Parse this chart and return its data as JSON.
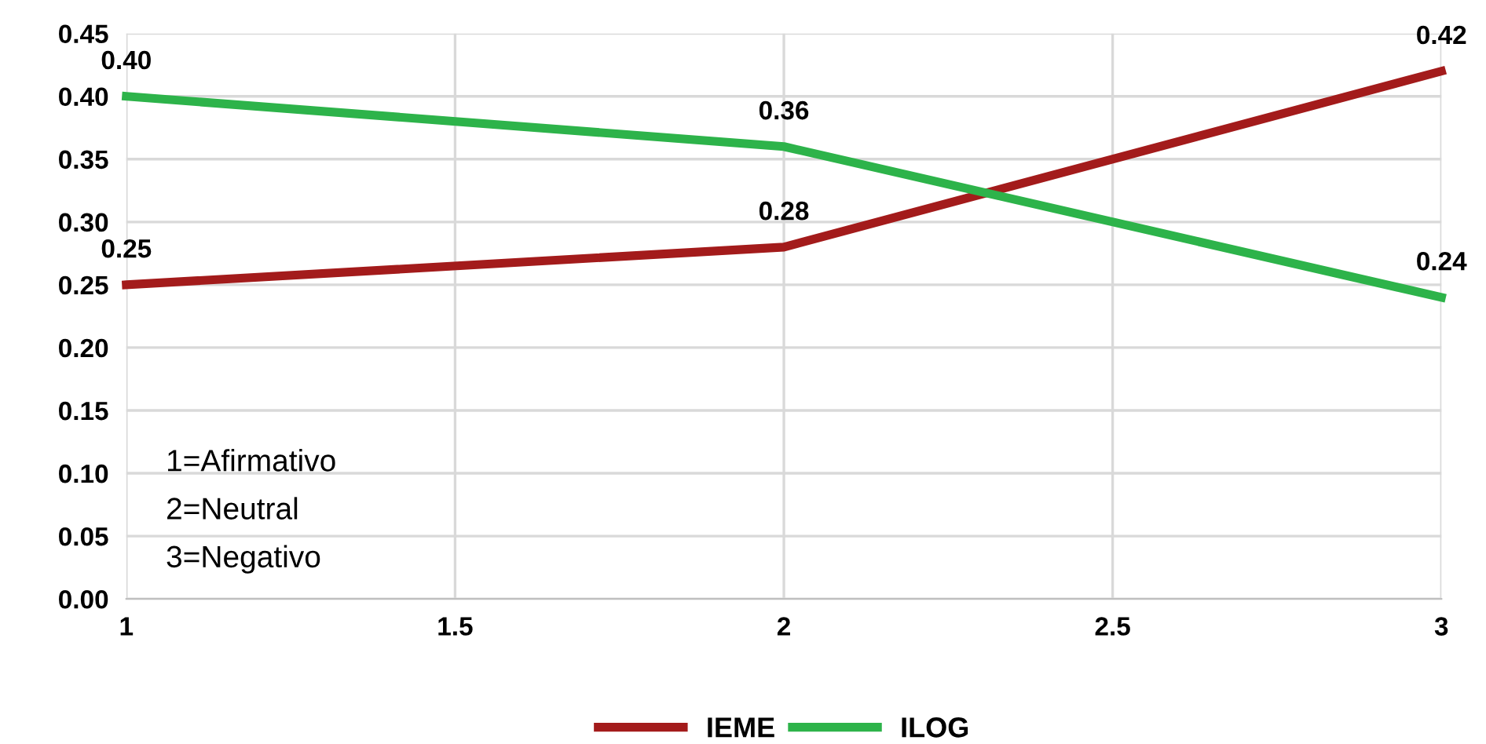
{
  "chart_data": {
    "type": "line",
    "x": [
      1,
      2,
      3
    ],
    "series": [
      {
        "name": "IEME",
        "color": "#a31b1b",
        "values": [
          0.25,
          0.28,
          0.42
        ],
        "value_labels": [
          "0.25",
          "0.28",
          "0.42"
        ]
      },
      {
        "name": "ILOG",
        "color": "#2db34a",
        "values": [
          0.4,
          0.36,
          0.24
        ],
        "value_labels": [
          "0.40",
          "0.36",
          "0.24"
        ]
      }
    ],
    "xlim": [
      1,
      3
    ],
    "xticks": [
      1,
      1.5,
      2,
      2.5,
      3
    ],
    "ylim": [
      0,
      0.45
    ],
    "yticks": [
      {
        "value": 0,
        "label": "0.00"
      },
      {
        "value": 0.05,
        "label": "0.05"
      },
      {
        "value": 0.1,
        "label": "0.10"
      },
      {
        "value": 0.15,
        "label": "0.15"
      },
      {
        "value": 0.2,
        "label": "0.20"
      },
      {
        "value": 0.25,
        "label": "0.25"
      },
      {
        "value": 0.3,
        "label": "0.30"
      },
      {
        "value": 0.35,
        "label": "0.35"
      },
      {
        "value": 0.4,
        "label": "0.40"
      },
      {
        "value": 0.45,
        "label": "0.45"
      }
    ],
    "grid": true,
    "legend": "bottom",
    "marker": "none",
    "line_style": "solid",
    "annotations": [
      "1=Afirmativo",
      "2=Neutral",
      "3=Negativo"
    ]
  }
}
